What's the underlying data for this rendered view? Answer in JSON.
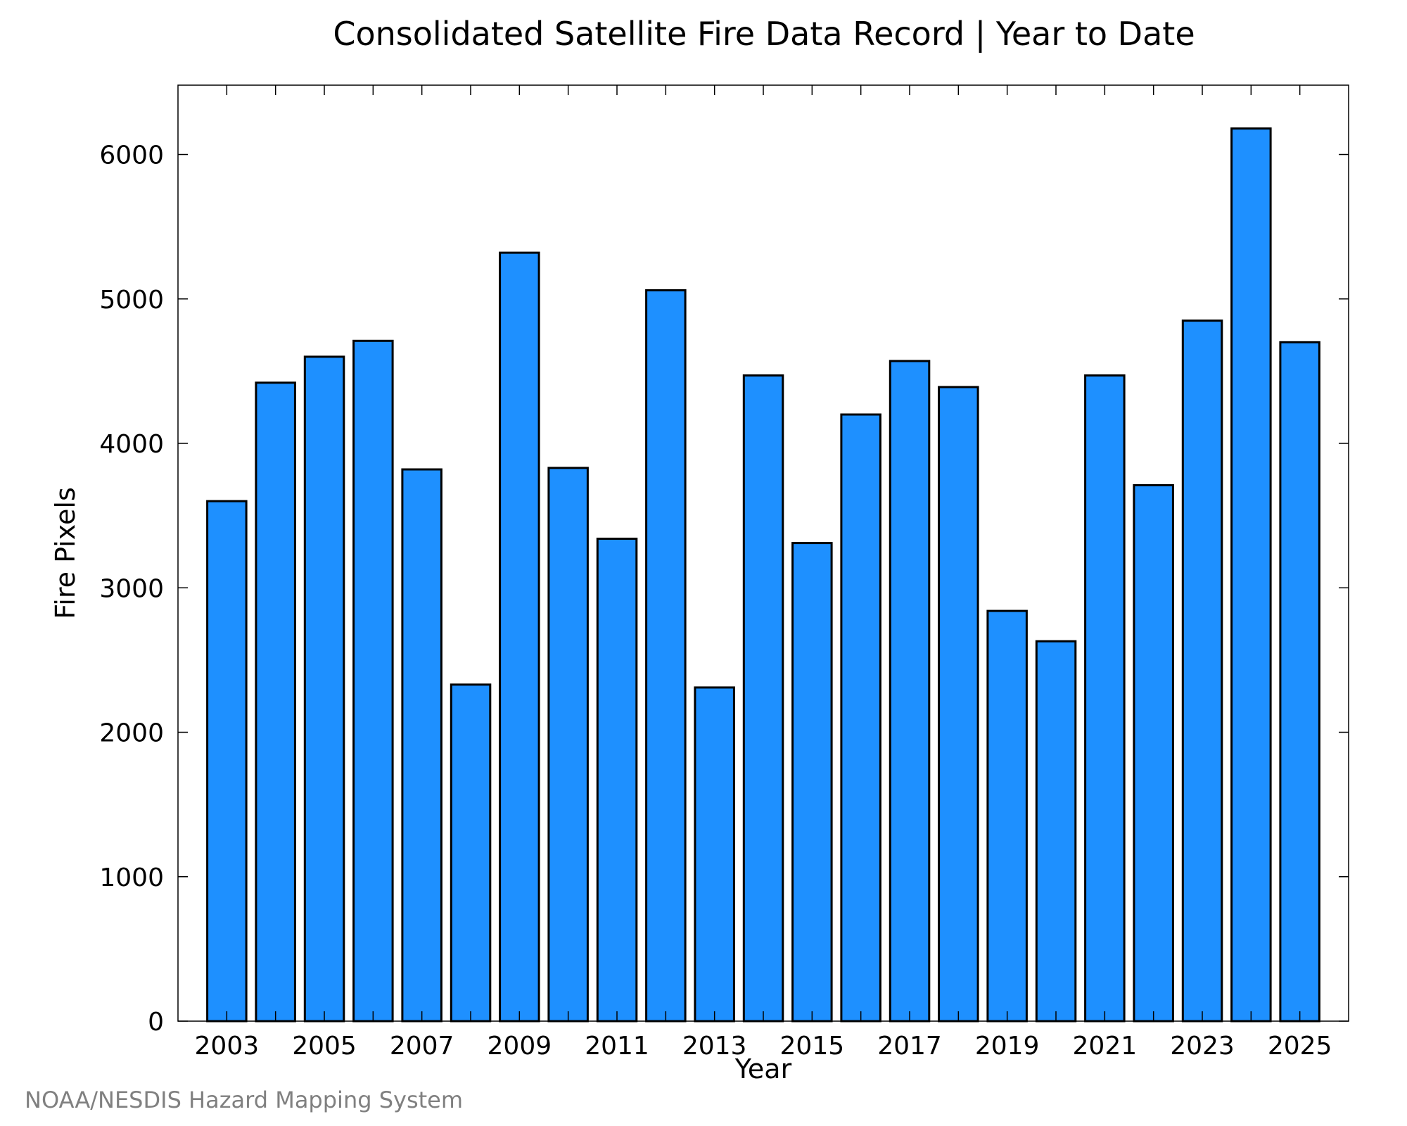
{
  "chart_data": {
    "type": "bar",
    "title": "Consolidated Satellite Fire Data Record | Year to Date",
    "xlabel": "Year",
    "ylabel": "Fire Pixels",
    "categories": [
      2003,
      2004,
      2005,
      2006,
      2007,
      2008,
      2009,
      2010,
      2011,
      2012,
      2013,
      2014,
      2015,
      2016,
      2017,
      2018,
      2019,
      2020,
      2021,
      2022,
      2023,
      2024,
      2025
    ],
    "values": [
      3600,
      4420,
      4600,
      4710,
      3820,
      2330,
      5320,
      3830,
      3340,
      5060,
      2310,
      4470,
      3310,
      4200,
      4570,
      4390,
      2840,
      2630,
      4470,
      3710,
      4850,
      6180,
      4700
    ],
    "ylim": [
      0,
      6480
    ],
    "xlim": [
      2002.0,
      2026.0
    ],
    "yticks": [
      0,
      1000,
      2000,
      3000,
      4000,
      5000,
      6000
    ],
    "xtick_labels": [
      "2003",
      "2005",
      "2007",
      "2009",
      "2011",
      "2013",
      "2015",
      "2017",
      "2019",
      "2021",
      "2023",
      "2025"
    ],
    "minor_xticks": [
      2003,
      2005,
      2007,
      2009,
      2011,
      2013,
      2015,
      2017,
      2019,
      2021,
      2023,
      2025
    ],
    "bar_color": "#1E90FF",
    "grid": false,
    "legend": "none"
  },
  "credit": "NOAA/NESDIS Hazard Mapping System"
}
